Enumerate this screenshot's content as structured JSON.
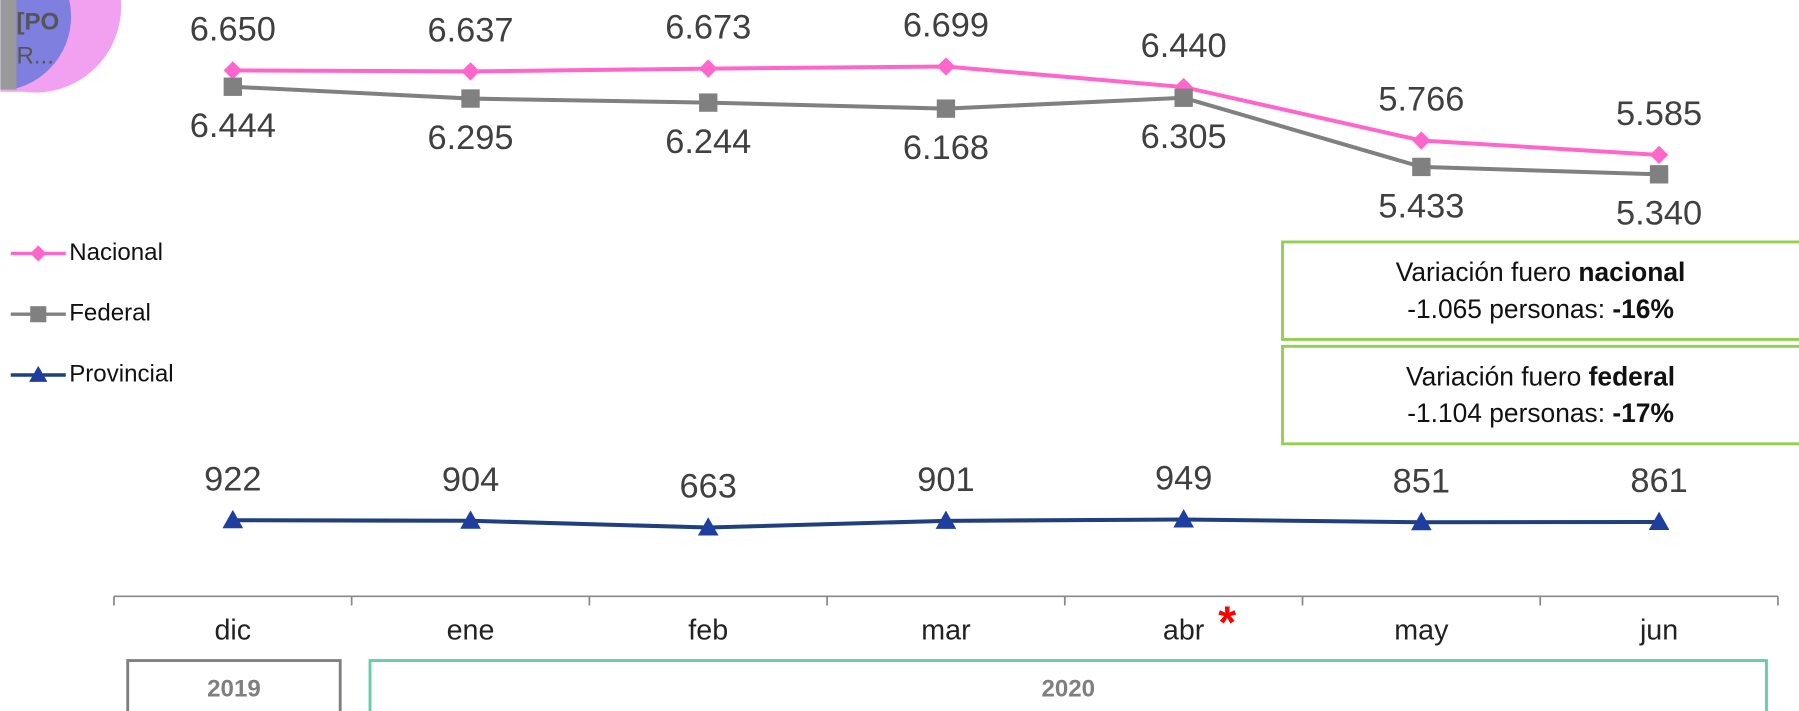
{
  "pie_fragment_label": [
    "[PO",
    "R..."
  ],
  "chart_data": {
    "type": "line",
    "categories": [
      "dic",
      "ene",
      "feb",
      "mar",
      "abr",
      "may",
      "jun"
    ],
    "series": [
      {
        "name": "Nacional",
        "color": "#ff66cc",
        "marker": "diamond",
        "label_side": "above",
        "values": [
          6650,
          6637,
          6673,
          6699,
          6440,
          5766,
          5585
        ],
        "value_labels": [
          "6.650",
          "6.637",
          "6.673",
          "6.699",
          "6.440",
          "5.766",
          "5.585"
        ]
      },
      {
        "name": "Federal",
        "color": "#808080",
        "marker": "square",
        "label_side": "below",
        "values": [
          6444,
          6295,
          6244,
          6168,
          6305,
          5433,
          5340
        ],
        "value_labels": [
          "6.444",
          "6.295",
          "6.244",
          "6.168",
          "6.305",
          "5.433",
          "5.340"
        ]
      },
      {
        "name": "Provincial",
        "color": "#1f3f7f",
        "marker_color": "#1f3fa0",
        "marker": "triangle",
        "label_side": "above",
        "values": [
          922,
          904,
          663,
          901,
          949,
          851,
          861
        ]
      }
    ],
    "category_note": {
      "category_index": 4,
      "text": "*",
      "color": "#ff0000"
    },
    "annotations": [
      {
        "line1": "Variación fuero ",
        "line1_bold": "nacional",
        "line2": "-1.065 personas: ",
        "line2_bold": "-16%"
      },
      {
        "line1": "Variación fuero ",
        "line1_bold": "federal",
        "line2": "-1.104 personas: ",
        "line2_bold": "-17%"
      }
    ],
    "annotation_border": "#92d050",
    "year_groups": [
      {
        "label": "2019",
        "start": 0,
        "end": 0,
        "color": "#7f7f7f"
      },
      {
        "label": "2020",
        "start": 1,
        "end": 6,
        "color": "#66ccaa"
      }
    ]
  }
}
